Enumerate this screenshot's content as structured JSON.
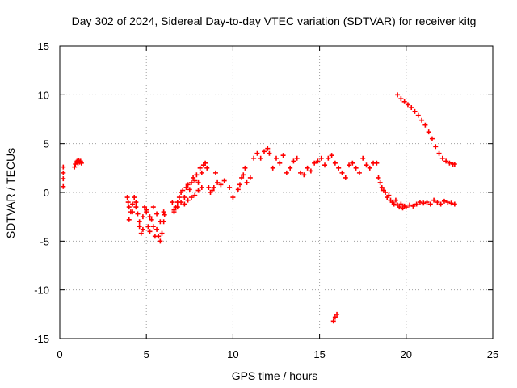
{
  "chart_data": {
    "type": "scatter",
    "title": "Day 302 of 2024, Sidereal Day-to-day VTEC variation (SDTVAR) for receiver kitg",
    "xlabel": "GPS time / hours",
    "ylabel": "SDTVAR / TECUs",
    "xlim": [
      0,
      25
    ],
    "ylim": [
      -15,
      15
    ],
    "xticks": [
      0,
      5,
      10,
      15,
      20,
      25
    ],
    "yticks": [
      -15,
      -10,
      -5,
      0,
      5,
      10,
      15
    ],
    "grid": true,
    "marker": "+",
    "color": "#ff0000",
    "series": [
      {
        "name": "SDTVAR",
        "x": [
          0.2,
          0.2,
          0.2,
          0.2,
          0.85,
          0.9,
          0.95,
          1.0,
          1.05,
          1.1,
          1.15,
          1.2,
          1.25,
          3.9,
          3.95,
          4.0,
          4.1,
          4.2,
          4.3,
          4.4,
          4.5,
          4.6,
          4.7,
          4.8,
          4.9,
          5.0,
          5.1,
          5.2,
          5.3,
          5.4,
          5.5,
          5.6,
          5.7,
          5.8,
          5.9,
          6.0,
          6.05,
          4.0,
          4.2,
          4.4,
          4.6,
          4.8,
          5.0,
          5.2,
          5.4,
          5.6,
          5.8,
          6.0,
          6.5,
          6.6,
          6.7,
          6.8,
          6.9,
          7.0,
          7.1,
          7.2,
          7.3,
          7.4,
          7.5,
          7.6,
          7.7,
          7.8,
          7.9,
          8.0,
          8.1,
          8.2,
          8.3,
          8.4,
          6.6,
          6.8,
          7.0,
          7.2,
          7.4,
          7.6,
          7.8,
          8.0,
          8.2,
          8.5,
          8.6,
          8.7,
          8.8,
          8.9,
          9.0,
          9.1,
          9.3,
          9.5,
          9.8,
          10.0,
          10.3,
          10.4,
          10.5,
          10.6,
          10.7,
          10.8,
          11.0,
          11.2,
          11.4,
          11.6,
          11.8,
          12.0,
          12.1,
          12.3,
          12.5,
          12.7,
          12.9,
          13.1,
          13.3,
          13.5,
          13.7,
          13.9,
          14.1,
          14.3,
          14.5,
          14.7,
          14.9,
          15.1,
          15.3,
          15.5,
          15.7,
          15.9,
          16.1,
          16.3,
          16.5,
          16.7,
          16.9,
          17.1,
          17.3,
          17.5,
          17.7,
          17.9,
          18.1,
          18.3,
          15.8,
          15.9,
          16.0,
          18.4,
          18.5,
          18.6,
          18.7,
          18.8,
          18.9,
          19.0,
          19.1,
          19.2,
          19.3,
          19.4,
          19.5,
          19.6,
          19.7,
          19.8,
          19.9,
          20.0,
          20.2,
          20.4,
          20.6,
          20.8,
          21.0,
          21.2,
          21.4,
          21.6,
          21.8,
          22.0,
          22.2,
          22.4,
          22.6,
          22.8,
          19.5,
          19.7,
          19.9,
          20.1,
          20.3,
          20.5,
          20.7,
          20.9,
          21.1,
          21.3,
          21.5,
          21.7,
          21.9,
          22.1,
          22.3,
          22.5,
          22.7,
          22.8
        ],
        "y": [
          2.6,
          2.0,
          1.4,
          0.6,
          2.6,
          2.9,
          3.1,
          3.2,
          3.0,
          3.3,
          3.1,
          3.2,
          3.0,
          -0.5,
          -1.0,
          -1.5,
          -2.0,
          -1.2,
          -0.5,
          -1.0,
          -2.2,
          -3.5,
          -4.2,
          -2.5,
          -1.5,
          -2.0,
          -3.5,
          -4.0,
          -2.8,
          -3.5,
          -4.5,
          -3.8,
          -4.5,
          -5.0,
          -4.2,
          -3.0,
          -2.3,
          -2.8,
          -2.0,
          -1.5,
          -3.0,
          -3.8,
          -1.8,
          -2.5,
          -1.5,
          -2.2,
          -3.0,
          -2.0,
          -1.0,
          -2.0,
          -1.5,
          -1.0,
          -0.5,
          0.0,
          0.2,
          -0.5,
          0.5,
          0.8,
          0.3,
          1.0,
          1.5,
          1.2,
          1.8,
          1.0,
          2.5,
          2.0,
          2.8,
          3.0,
          -1.8,
          -1.5,
          -1.0,
          -1.2,
          -0.8,
          -0.5,
          -0.3,
          0.2,
          0.5,
          2.5,
          0.5,
          0.0,
          0.2,
          0.5,
          2.0,
          1.0,
          0.8,
          1.2,
          0.5,
          -0.5,
          0.3,
          0.8,
          1.5,
          1.8,
          2.5,
          1.0,
          1.5,
          3.5,
          4.0,
          3.5,
          4.2,
          4.5,
          4.0,
          2.5,
          3.5,
          3.0,
          3.8,
          2.0,
          2.5,
          3.2,
          3.5,
          2.0,
          1.8,
          2.5,
          2.2,
          3.0,
          3.2,
          3.5,
          2.8,
          3.5,
          3.8,
          3.0,
          2.5,
          2.0,
          1.5,
          2.8,
          3.0,
          2.5,
          2.0,
          3.5,
          2.8,
          2.5,
          3.0,
          3.0,
          -13.2,
          -12.8,
          -12.5,
          1.5,
          1.0,
          0.5,
          0.2,
          0.0,
          -0.5,
          -0.3,
          -0.8,
          -1.0,
          -1.2,
          -0.8,
          -1.3,
          -1.5,
          -1.2,
          -1.6,
          -1.4,
          -1.5,
          -1.3,
          -1.4,
          -1.2,
          -1.0,
          -1.1,
          -1.0,
          -1.2,
          -0.8,
          -1.0,
          -1.2,
          -0.9,
          -1.0,
          -1.1,
          -1.2,
          10.0,
          9.6,
          9.3,
          9.0,
          8.7,
          8.3,
          7.9,
          7.4,
          6.9,
          6.2,
          5.5,
          4.7,
          4.0,
          3.5,
          3.2,
          3.0,
          2.9,
          2.9
        ]
      }
    ]
  }
}
